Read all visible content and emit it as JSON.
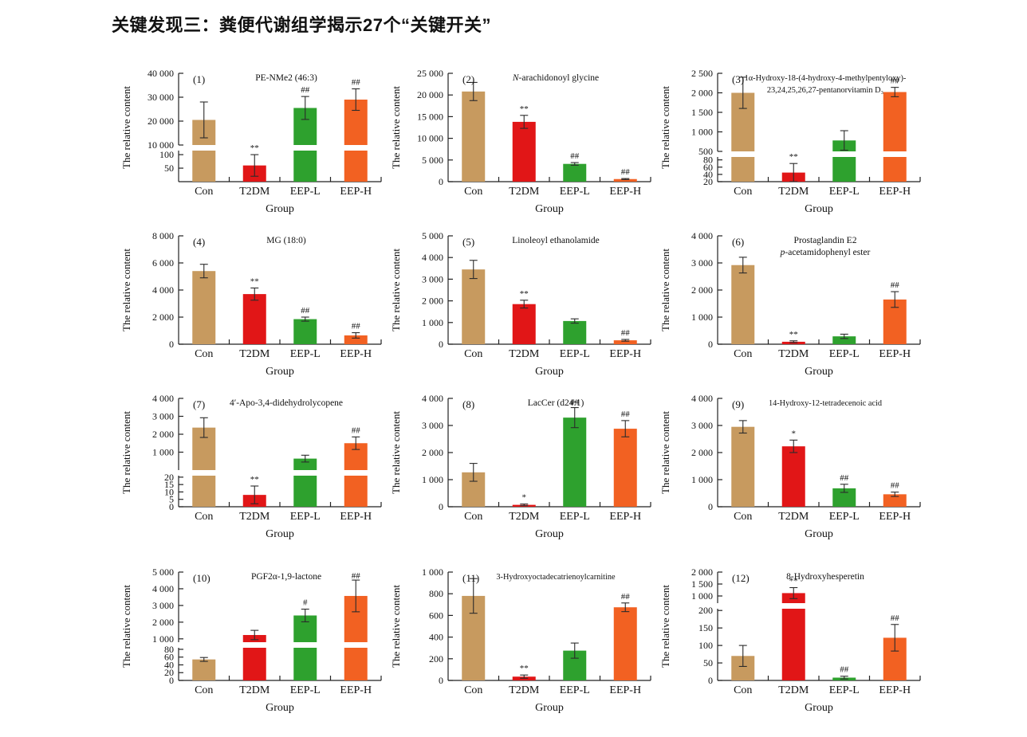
{
  "page_title": "关键发现三：粪便代谢组学揭示27个“关键开关”",
  "colors": {
    "con": "#C79A5F",
    "t2dm": "#E11617",
    "eepl": "#2EA12E",
    "eeph": "#F26122",
    "axis": "#222222",
    "error": "#2b2b2b",
    "sig": "#3a3a3a"
  },
  "chart_data": [
    {
      "type": "bar",
      "index": "(1)",
      "title_lines": [
        "PE-NMe2 (46:3)"
      ],
      "ylabel": "The relative content",
      "xlabel": "Group",
      "categories": [
        "Con",
        "T2DM",
        "EEP-L",
        "EEP-H"
      ],
      "values": [
        20500,
        60,
        25500,
        29000
      ],
      "errors": [
        7500,
        40,
        4800,
        4500
      ],
      "sig": [
        "",
        "**",
        "##",
        "##"
      ],
      "broken": true,
      "upper_frac": 0.7,
      "upper": {
        "min": 10000,
        "max": 40000,
        "ticks": [
          10000,
          20000,
          30000,
          40000
        ]
      },
      "lower": {
        "min": 0,
        "max": 115,
        "ticks": [
          50,
          100
        ]
      }
    },
    {
      "type": "bar",
      "index": "(2)",
      "title_lines": [
        "N-arachidonoyl glycine"
      ],
      "title_italic": [
        [
          0,
          1
        ]
      ],
      "ylabel": "The relative content",
      "xlabel": "Group",
      "categories": [
        "Con",
        "T2DM",
        "EEP-L",
        "EEP-H"
      ],
      "values": [
        20800,
        13800,
        4100,
        600
      ],
      "errors": [
        2100,
        1500,
        300,
        120
      ],
      "sig": [
        "",
        "**",
        "##",
        "##"
      ],
      "broken": false,
      "axis": {
        "min": 0,
        "max": 25000,
        "ticks": [
          0,
          5000,
          10000,
          15000,
          20000,
          25000
        ]
      }
    },
    {
      "type": "bar",
      "index": "(3)",
      "title_lines": [
        "1α-Hydroxy-18-(4-hydroxy-4-methylpentyloxy)-",
        "23,24,25,26,27-pentanorvitamin D₃"
      ],
      "ylabel": "The relative content",
      "xlabel": "Group",
      "categories": [
        "Con",
        "T2DM",
        "EEP-L",
        "EEP-H"
      ],
      "values": [
        2000,
        45,
        780,
        2020
      ],
      "errors": [
        400,
        25,
        250,
        120
      ],
      "sig": [
        "",
        "**",
        "",
        "##"
      ],
      "broken": true,
      "upper_frac": 0.76,
      "upper": {
        "min": 500,
        "max": 2500,
        "ticks": [
          500,
          1000,
          1500,
          2000,
          2500
        ]
      },
      "lower": {
        "min": 20,
        "max": 88,
        "ticks": [
          20,
          40,
          60,
          80
        ]
      }
    },
    {
      "type": "bar",
      "index": "(4)",
      "title_lines": [
        "MG (18:0)"
      ],
      "ylabel": "The relative content",
      "xlabel": "Group",
      "categories": [
        "Con",
        "T2DM",
        "EEP-L",
        "EEP-H"
      ],
      "values": [
        5400,
        3700,
        1850,
        650
      ],
      "errors": [
        500,
        450,
        150,
        200
      ],
      "sig": [
        "",
        "**",
        "##",
        "##"
      ],
      "broken": false,
      "axis": {
        "min": 0,
        "max": 8000,
        "ticks": [
          0,
          2000,
          4000,
          6000,
          8000
        ]
      }
    },
    {
      "type": "bar",
      "index": "(5)",
      "title_lines": [
        "Linoleoyl ethanolamide"
      ],
      "ylabel": "The relative content",
      "xlabel": "Group",
      "categories": [
        "Con",
        "T2DM",
        "EEP-L",
        "EEP-H"
      ],
      "values": [
        3450,
        1850,
        1070,
        180
      ],
      "errors": [
        420,
        180,
        100,
        40
      ],
      "sig": [
        "",
        "**",
        "",
        "##"
      ],
      "broken": false,
      "axis": {
        "min": 0,
        "max": 5000,
        "ticks": [
          0,
          1000,
          2000,
          3000,
          4000,
          5000
        ]
      }
    },
    {
      "type": "bar",
      "index": "(6)",
      "title_lines": [
        "Prostaglandin E2",
        "p-acetamidophenyl ester"
      ],
      "title_italic": [
        [
          1,
          1
        ]
      ],
      "ylabel": "The relative content",
      "xlabel": "Group",
      "categories": [
        "Con",
        "T2DM",
        "EEP-L",
        "EEP-H"
      ],
      "values": [
        2920,
        90,
        290,
        1650
      ],
      "errors": [
        290,
        35,
        80,
        290
      ],
      "sig": [
        "",
        "**",
        "",
        "##"
      ],
      "broken": false,
      "axis": {
        "min": 0,
        "max": 4000,
        "ticks": [
          0,
          1000,
          2000,
          3000,
          4000
        ]
      }
    },
    {
      "type": "bar",
      "index": "(7)",
      "title_lines": [
        "4′-Apo-3,4-didehydrolycopene"
      ],
      "ylabel": "The relative content",
      "xlabel": "Group",
      "categories": [
        "Con",
        "T2DM",
        "EEP-L",
        "EEP-H"
      ],
      "values": [
        2370,
        8,
        640,
        1500
      ],
      "errors": [
        550,
        6,
        190,
        350
      ],
      "sig": [
        "",
        "**",
        "",
        "##"
      ],
      "broken": true,
      "upper_frac": 0.7,
      "upper": {
        "min": 0,
        "max": 4000,
        "ticks": [
          1000,
          2000,
          3000,
          4000
        ]
      },
      "lower": {
        "min": 0,
        "max": 21,
        "ticks": [
          0,
          5,
          10,
          15,
          20
        ]
      }
    },
    {
      "type": "bar",
      "index": "(8)",
      "title_lines": [
        "LacCer (d24:1)"
      ],
      "ylabel": "The relative content",
      "xlabel": "Group",
      "categories": [
        "Con",
        "T2DM",
        "EEP-L",
        "EEP-H"
      ],
      "values": [
        1270,
        70,
        3290,
        2880
      ],
      "errors": [
        330,
        30,
        370,
        300
      ],
      "sig": [
        "",
        "*",
        "##",
        "##"
      ],
      "broken": false,
      "axis": {
        "min": 0,
        "max": 4000,
        "ticks": [
          0,
          1000,
          2000,
          3000,
          4000
        ]
      }
    },
    {
      "type": "bar",
      "index": "(9)",
      "title_lines": [
        "14-Hydroxy-12-tetradecenoic acid"
      ],
      "ylabel": "The relative content",
      "xlabel": "Group",
      "categories": [
        "Con",
        "T2DM",
        "EEP-L",
        "EEP-H"
      ],
      "values": [
        2950,
        2230,
        680,
        460
      ],
      "errors": [
        230,
        230,
        150,
        80
      ],
      "sig": [
        "",
        "*",
        "##",
        "##"
      ],
      "broken": false,
      "axis": {
        "min": 0,
        "max": 4000,
        "ticks": [
          0,
          1000,
          2000,
          3000,
          4000
        ]
      }
    },
    {
      "type": "bar",
      "index": "(10)",
      "title_lines": [
        "PGF2α-1,9-lactone"
      ],
      "ylabel": "The relative content",
      "xlabel": "Group",
      "categories": [
        "Con",
        "T2DM",
        "EEP-L",
        "EEP-H"
      ],
      "values": [
        54,
        1230,
        2400,
        3570
      ],
      "errors": [
        5,
        280,
        380,
        950
      ],
      "sig": [
        "",
        "",
        "#",
        "##"
      ],
      "broken": true,
      "upper_frac": 0.68,
      "upper": {
        "min": 800,
        "max": 5000,
        "ticks": [
          1000,
          2000,
          3000,
          4000,
          5000
        ]
      },
      "lower": {
        "min": 0,
        "max": 84,
        "ticks": [
          0,
          20,
          40,
          60,
          80
        ]
      }
    },
    {
      "type": "bar",
      "index": "(11)",
      "title_lines": [
        "3-Hydroxyoctadecatrienoylcarnitine"
      ],
      "ylabel": "The relative content",
      "xlabel": "Group",
      "categories": [
        "Con",
        "T2DM",
        "EEP-L",
        "EEP-H"
      ],
      "values": [
        780,
        35,
        275,
        675
      ],
      "errors": [
        160,
        15,
        70,
        40
      ],
      "sig": [
        "",
        "**",
        "",
        "##"
      ],
      "broken": false,
      "axis": {
        "min": 0,
        "max": 1000,
        "ticks": [
          0,
          200,
          400,
          600,
          800,
          1000
        ]
      }
    },
    {
      "type": "bar",
      "index": "(12)",
      "title_lines": [
        "8-Hydroxyhesperetin"
      ],
      "ylabel": "The relative content",
      "xlabel": "Group",
      "categories": [
        "Con",
        "T2DM",
        "EEP-L",
        "EEP-H"
      ],
      "values": [
        70,
        1120,
        8,
        122
      ],
      "errors": [
        30,
        230,
        4,
        38
      ],
      "sig": [
        "",
        "**",
        "##",
        "##"
      ],
      "broken": true,
      "upper_frac": 0.3,
      "upper": {
        "min": 700,
        "max": 2000,
        "ticks": [
          1000,
          1500,
          2000
        ]
      },
      "lower": {
        "min": 0,
        "max": 205,
        "ticks": [
          0,
          50,
          100,
          150,
          200
        ]
      }
    }
  ]
}
